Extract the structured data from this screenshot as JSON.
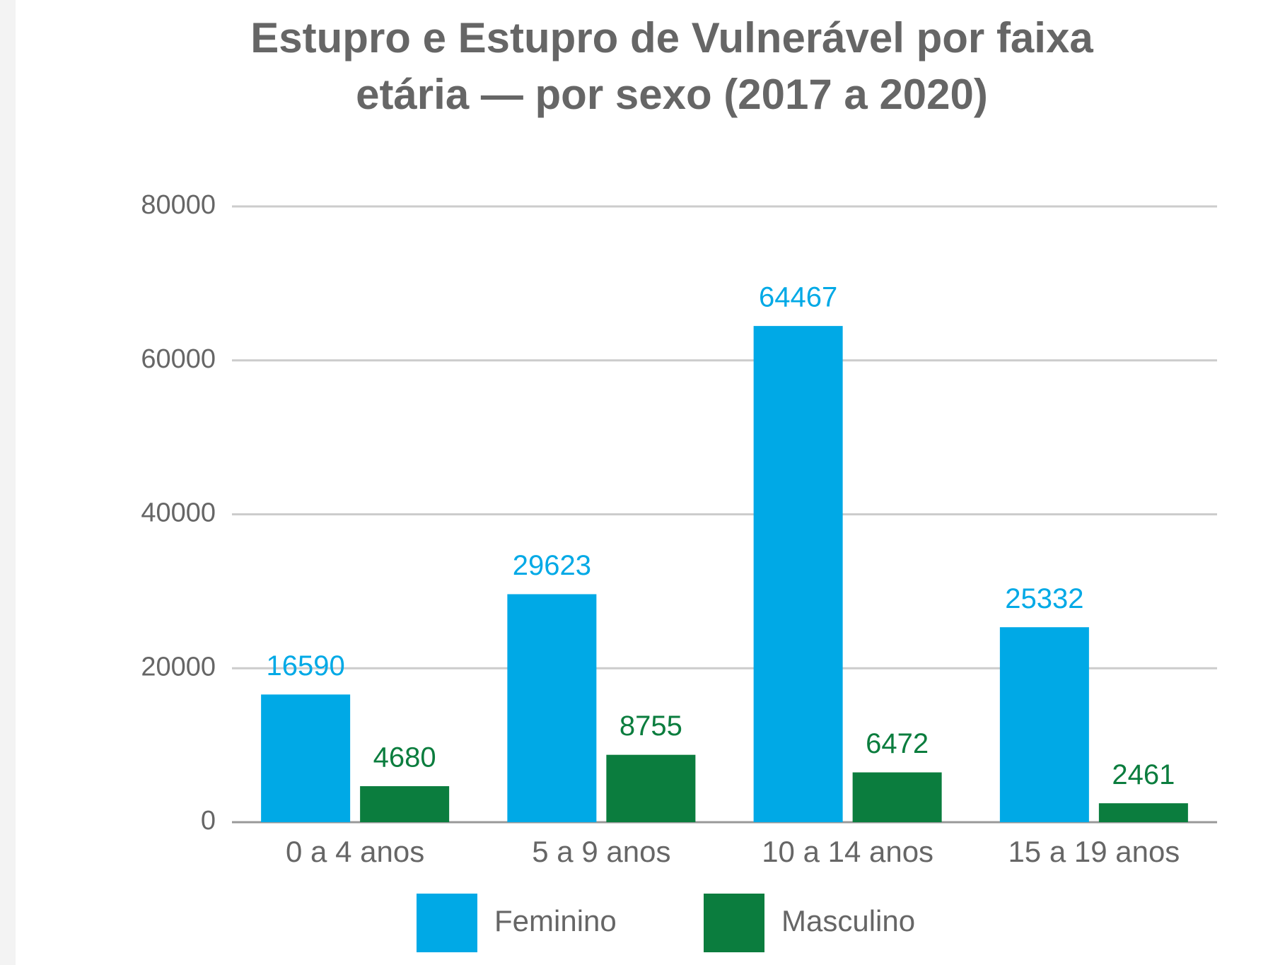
{
  "chart_data": {
    "type": "bar",
    "title": [
      "Estupro e Estupro de Vulnerável por faixa",
      "etária — por sexo (2017 a 2020)"
    ],
    "categories": [
      "0 a 4 anos",
      "5 a 9 anos",
      "10 a 14 anos",
      "15 a 19 anos"
    ],
    "series": [
      {
        "name": "Feminino",
        "color": "#00a9e6",
        "values": [
          16590,
          29623,
          64467,
          25332
        ]
      },
      {
        "name": "Masculino",
        "color": "#0b7d3e",
        "values": [
          4680,
          8755,
          6472,
          2461
        ]
      }
    ],
    "ylim": [
      0,
      80000
    ],
    "yticks": [
      0,
      20000,
      40000,
      60000,
      80000
    ],
    "grid": true,
    "legend": "bottom"
  }
}
